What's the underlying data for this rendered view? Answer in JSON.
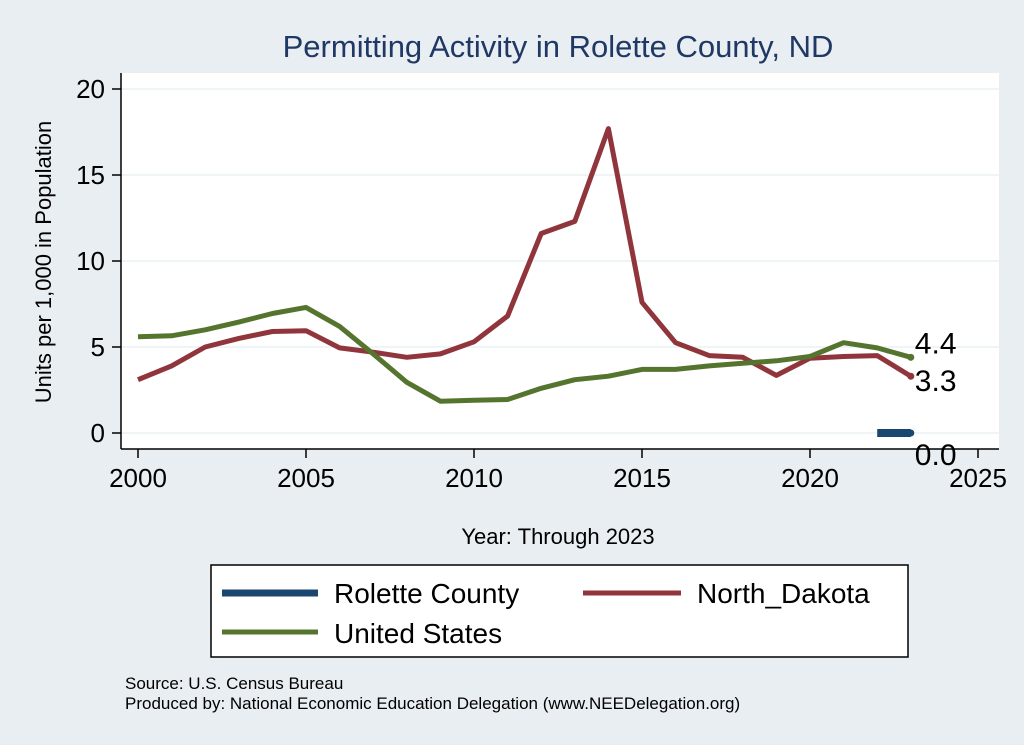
{
  "chart_data": {
    "type": "line",
    "title": "Permitting Activity in Rolette County, ND",
    "xlabel": "Year: Through 2023",
    "ylabel": "Units per 1,000 in Population",
    "xlim": [
      2000,
      2025
    ],
    "ylim": [
      0,
      20
    ],
    "x_ticks": [
      2000,
      2005,
      2010,
      2015,
      2020,
      2025
    ],
    "y_ticks": [
      0,
      5,
      10,
      15,
      20
    ],
    "grid": true,
    "legend_position": "bottom",
    "series": [
      {
        "name": "Rolette County",
        "color": "#1a476f",
        "x": [
          2022,
          2023
        ],
        "values": [
          0.0,
          0.0
        ],
        "end_label": "0.0"
      },
      {
        "name": "North_Dakota",
        "color": "#90353b",
        "x": [
          2000,
          2001,
          2002,
          2003,
          2004,
          2005,
          2006,
          2007,
          2008,
          2009,
          2010,
          2011,
          2012,
          2013,
          2014,
          2015,
          2016,
          2017,
          2018,
          2019,
          2020,
          2021,
          2022,
          2023
        ],
        "values": [
          3.1,
          3.9,
          5.0,
          5.5,
          5.9,
          5.95,
          4.95,
          4.7,
          4.4,
          4.6,
          5.3,
          6.8,
          11.6,
          12.3,
          17.7,
          7.6,
          5.25,
          4.5,
          4.4,
          3.35,
          4.35,
          4.45,
          4.5,
          3.3
        ],
        "end_label": "3.3"
      },
      {
        "name": "United States",
        "color": "#55752f",
        "x": [
          2000,
          2001,
          2002,
          2003,
          2004,
          2005,
          2006,
          2007,
          2008,
          2009,
          2010,
          2011,
          2012,
          2013,
          2014,
          2015,
          2016,
          2017,
          2018,
          2019,
          2020,
          2021,
          2022,
          2023
        ],
        "values": [
          5.6,
          5.65,
          6.0,
          6.45,
          6.95,
          7.3,
          6.2,
          4.6,
          2.95,
          1.85,
          1.9,
          1.95,
          2.6,
          3.1,
          3.3,
          3.7,
          3.7,
          3.9,
          4.05,
          4.2,
          4.45,
          5.25,
          4.95,
          4.4
        ],
        "end_label": "4.4"
      }
    ],
    "source_note": "Source: U.S. Census Bureau",
    "producer_note": "Produced by: National Economic Education Delegation (www.NEEDelegation.org)"
  }
}
